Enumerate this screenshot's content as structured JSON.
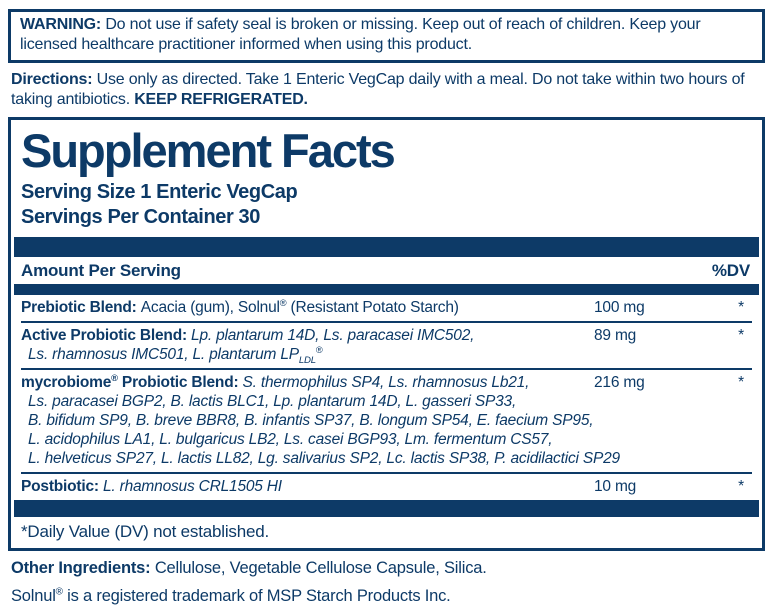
{
  "colors": {
    "navy": "#0d3a67",
    "background": "#ffffff"
  },
  "warning": {
    "label": "WARNING: ",
    "text": "Do not use if safety seal is broken or missing. Keep out of reach of children. Keep your licensed healthcare practitioner informed when using this product."
  },
  "directions": {
    "label": "Directions: ",
    "text": "Use only as directed. Take 1 Enteric VegCap daily with a meal. Do not take within two hours of taking antibiotics. ",
    "emphasis": "KEEP REFRIGERATED."
  },
  "supplement_facts": {
    "title": "Supplement Facts",
    "serving_size": "Serving Size 1 Enteric VegCap",
    "servings_per_container": "Servings Per Container 30",
    "header": {
      "amount_label": "Amount Per Serving",
      "dv_label": "%DV"
    },
    "rows": [
      {
        "first_line": [
          {
            "t": "Prebiotic Blend: ",
            "s": "b"
          },
          {
            "t": "Acacia (gum), Solnul",
            "s": "r"
          },
          {
            "t": "®",
            "s": "sup"
          },
          {
            "t": " (Resistant Potato Starch)",
            "s": "r"
          }
        ],
        "more_lines": [],
        "amount": "100 mg",
        "dv": "*"
      },
      {
        "first_line": [
          {
            "t": "Active Probiotic Blend: ",
            "s": "b"
          },
          {
            "t": "Lp. plantarum 14D, Ls. paracasei IMC502,",
            "s": "i"
          }
        ],
        "more_lines": [
          [
            {
              "t": "Ls. rhamnosus IMC501, L. plantarum LP",
              "s": "i"
            },
            {
              "t": "LDL",
              "s": "isub"
            },
            {
              "t": "®",
              "s": "sup"
            }
          ]
        ],
        "amount": "89 mg",
        "dv": "*"
      },
      {
        "first_line": [
          {
            "t": "mycrobiome",
            "s": "b"
          },
          {
            "t": "®",
            "s": "bsup"
          },
          {
            "t": " Probiotic Blend: ",
            "s": "b"
          },
          {
            "t": "S. thermophilus SP4, Ls. rhamnosus Lb21,",
            "s": "i"
          }
        ],
        "more_lines": [
          [
            {
              "t": "Ls. paracasei BGP2, B. lactis BLC1, Lp. plantarum 14D, L. gasseri SP33,",
              "s": "i"
            }
          ],
          [
            {
              "t": "B. bifidum SP9, B. breve BBR8, B. infantis SP37, B. longum SP54, E. faecium SP95,",
              "s": "i"
            }
          ],
          [
            {
              "t": "L. acidophilus LA1, L. bulgaricus LB2, Ls. casei BGP93, Lm. fermentum CS57,",
              "s": "i"
            }
          ],
          [
            {
              "t": "L. helveticus SP27, L. lactis LL82, Lg. salivarius SP2, Lc. lactis SP38, P. acidilactici SP29",
              "s": "i"
            }
          ]
        ],
        "amount": "216 mg",
        "dv": "*"
      },
      {
        "first_line": [
          {
            "t": "Postbiotic: ",
            "s": "b"
          },
          {
            "t": "L. rhamnosus CRL1505 HI",
            "s": "i"
          }
        ],
        "more_lines": [],
        "amount": "10 mg",
        "dv": "*"
      }
    ],
    "footnote": "*Daily Value (DV) not established."
  },
  "other_ingredients": {
    "label": "Other Ingredients: ",
    "text": "Cellulose, Vegetable Cellulose Capsule, Silica."
  },
  "trademark": {
    "brand": "Solnul",
    "reg": "®",
    "text": " is a registered trademark of MSP Starch Products Inc."
  }
}
